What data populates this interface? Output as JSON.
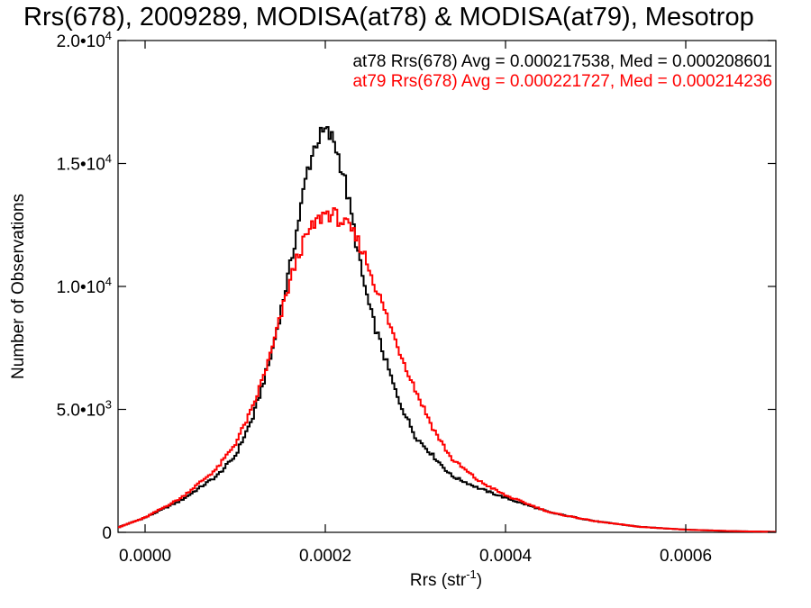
{
  "chart_data": {
    "type": "line",
    "title": "Rrs(678), 2009289, MODISA(at78) & MODISA(at79), Mesotrop",
    "xlabel": "Rrs (str",
    "xlabel_sup": "-1",
    "xlabel_end": ")",
    "ylabel": "Number of Observations",
    "xlim": [
      -3e-05,
      0.0007
    ],
    "ylim": [
      0,
      20000
    ],
    "x_ticks": [
      {
        "value": 0.0,
        "label": "0.0000"
      },
      {
        "value": 0.0002,
        "label": "0.0002"
      },
      {
        "value": 0.0004,
        "label": "0.0004"
      },
      {
        "value": 0.0006,
        "label": "0.0006"
      }
    ],
    "y_ticks": [
      {
        "value": 0,
        "mant": "0",
        "exp": ""
      },
      {
        "value": 5000,
        "mant": "5.0•10",
        "exp": "3"
      },
      {
        "value": 10000,
        "mant": "1.0•10",
        "exp": "4"
      },
      {
        "value": 15000,
        "mant": "1.5•10",
        "exp": "4"
      },
      {
        "value": 20000,
        "mant": "2.0•10",
        "exp": "4"
      }
    ],
    "annotations": [
      {
        "text": "at78 Rrs(678) Avg = 0.000217538, Med = 0.000208601",
        "color": "#000000"
      },
      {
        "text": "at79 Rrs(678) Avg = 0.000221727, Med = 0.000214236",
        "color": "#ff0000"
      }
    ],
    "series": [
      {
        "name": "at78",
        "color": "#000000",
        "x": [
          -3e-05,
          0.0,
          4e-05,
          8e-05,
          0.0001,
          0.00012,
          0.00014,
          0.00016,
          0.00017,
          0.00018,
          0.00019,
          0.0002,
          0.00021,
          0.00022,
          0.00023,
          0.00024,
          0.00025,
          0.00026,
          0.00028,
          0.0003,
          0.00032,
          0.00034,
          0.00037,
          0.0004,
          0.00045,
          0.0005,
          0.00055,
          0.0006,
          0.00065,
          0.0007
        ],
        "y": [
          200,
          600,
          1300,
          2300,
          3100,
          4700,
          7200,
          10600,
          12600,
          14700,
          15900,
          16300,
          15900,
          14600,
          12700,
          10600,
          9000,
          7800,
          5500,
          3900,
          3100,
          2300,
          1800,
          1400,
          800,
          450,
          220,
          110,
          50,
          20
        ]
      },
      {
        "name": "at79",
        "color": "#ff0000",
        "x": [
          -3e-05,
          0.0,
          4e-05,
          8e-05,
          0.0001,
          0.00012,
          0.00014,
          0.00016,
          0.00017,
          0.00018,
          0.00019,
          0.0002,
          0.00021,
          0.00022,
          0.00023,
          0.00024,
          0.00025,
          0.00026,
          0.00028,
          0.0003,
          0.00032,
          0.00034,
          0.00037,
          0.0004,
          0.00045,
          0.0005,
          0.00055,
          0.0006,
          0.00065,
          0.0007
        ],
        "y": [
          200,
          600,
          1400,
          2600,
          3600,
          5100,
          7300,
          10100,
          11300,
          12100,
          12600,
          13000,
          12900,
          12600,
          12200,
          11600,
          10600,
          9600,
          7600,
          5800,
          4200,
          3000,
          2100,
          1500,
          800,
          450,
          220,
          110,
          50,
          20
        ]
      }
    ]
  }
}
